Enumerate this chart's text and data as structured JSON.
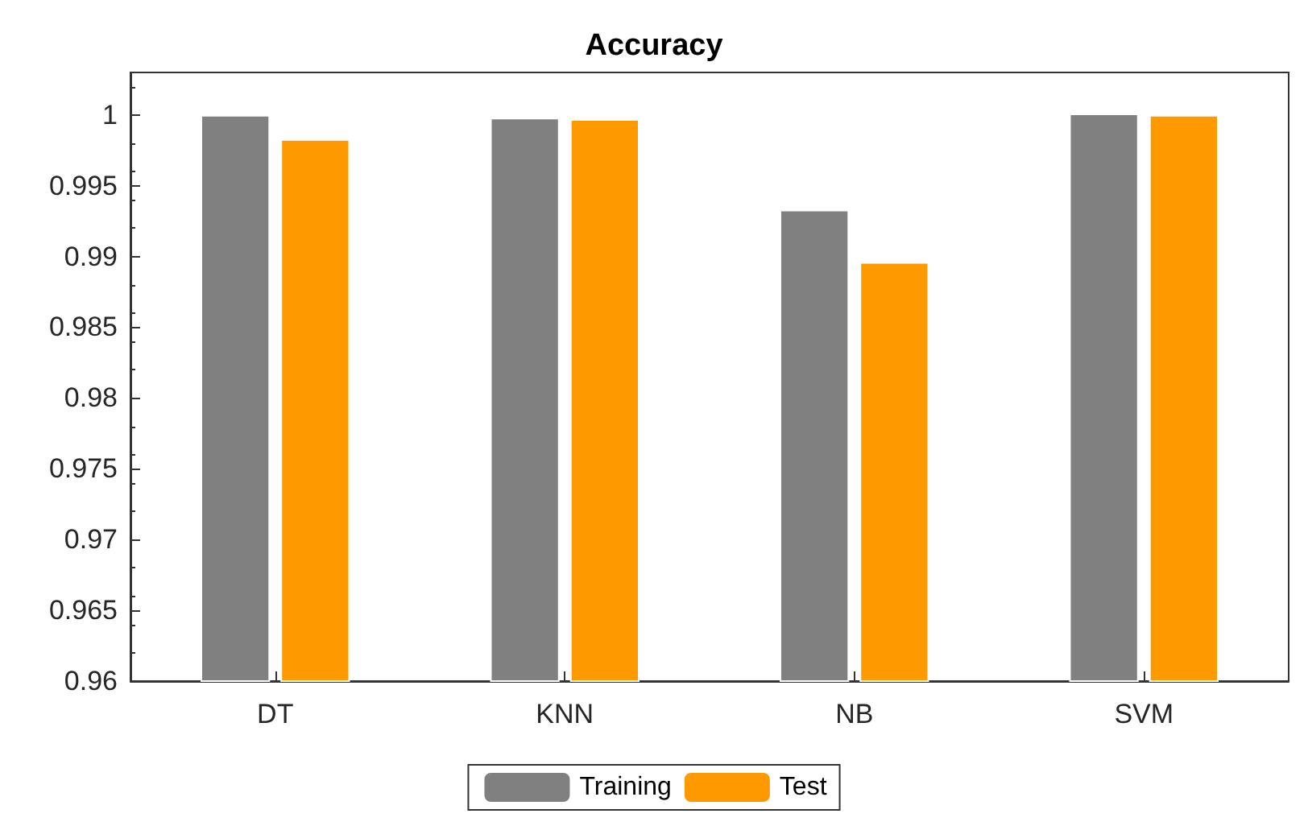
{
  "chart_data": {
    "type": "bar",
    "title": "Accuracy",
    "categories": [
      "DT",
      "KNN",
      "NB",
      "SVM"
    ],
    "series": [
      {
        "name": "Training",
        "color": "#808080",
        "values": [
          1.0,
          0.9998,
          0.9933,
          1.0001
        ]
      },
      {
        "name": "Test",
        "color": "#ff9900",
        "values": [
          0.9983,
          0.9997,
          0.9896,
          1.0
        ]
      }
    ],
    "ylim": [
      0.96,
      1.003
    ],
    "yticks": [
      0.96,
      0.965,
      0.97,
      0.975,
      0.98,
      0.985,
      0.99,
      0.995,
      1
    ],
    "grid": false,
    "legend": "bottom"
  }
}
